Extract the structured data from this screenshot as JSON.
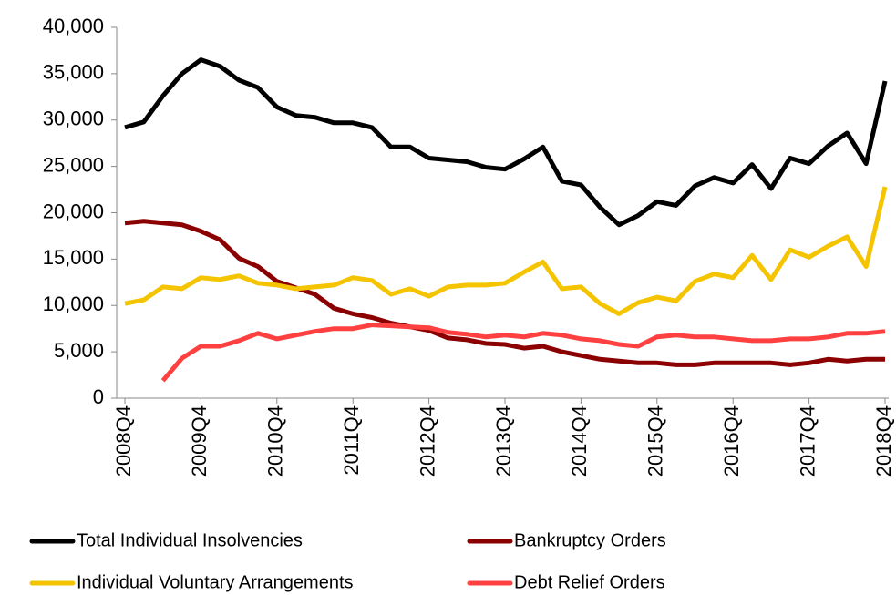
{
  "chart_data": {
    "type": "line",
    "categories": [
      "2008Q4",
      null,
      null,
      null,
      "2009Q4",
      null,
      null,
      null,
      "2010Q4",
      null,
      null,
      null,
      "2011Q4",
      null,
      null,
      null,
      "2012Q4",
      null,
      null,
      null,
      "2013Q4",
      null,
      null,
      null,
      "2014Q4",
      null,
      null,
      null,
      "2015Q4",
      null,
      null,
      null,
      "2016Q4",
      null,
      null,
      null,
      "2017Q4",
      null,
      null,
      null,
      "2018Q4"
    ],
    "series": [
      {
        "name": "Total Individual Insolvencies",
        "color": "#000000",
        "values": [
          29200,
          29800,
          32600,
          35000,
          36500,
          35800,
          34300,
          33500,
          31400,
          30500,
          30300,
          29700,
          29700,
          29200,
          27100,
          27100,
          25900,
          25700,
          25500,
          24900,
          24700,
          25800,
          27100,
          23400,
          23000,
          20600,
          18700,
          19700,
          21200,
          20800,
          22900,
          23800,
          23200,
          25200,
          22600,
          25900,
          25300,
          27200,
          28600,
          25300,
          34200
        ]
      },
      {
        "name": "Bankruptcy Orders",
        "color": "#8b0000",
        "values": [
          18900,
          19100,
          18900,
          18700,
          18000,
          17100,
          15100,
          14200,
          12600,
          11900,
          11200,
          9700,
          9100,
          8700,
          8100,
          7700,
          7300,
          6500,
          6300,
          5900,
          5800,
          5400,
          5600,
          5000,
          4600,
          4200,
          4000,
          3800,
          3800,
          3600,
          3600,
          3800,
          3800,
          3800,
          3800,
          3600,
          3800,
          4200,
          4000,
          4200,
          4200
        ]
      },
      {
        "name": "Individual Voluntary Arrangements",
        "color": "#f5c400",
        "values": [
          10200,
          10600,
          12000,
          11800,
          13000,
          12800,
          13200,
          12400,
          12200,
          11800,
          12000,
          12200,
          13000,
          12700,
          11200,
          11800,
          11000,
          12000,
          12200,
          12200,
          12400,
          13600,
          14700,
          11800,
          12000,
          10200,
          9100,
          10300,
          10900,
          10500,
          12600,
          13400,
          13000,
          15400,
          12800,
          16000,
          15200,
          16400,
          17400,
          14200,
          22800
        ]
      },
      {
        "name": "Debt Relief Orders",
        "color": "#ff4040",
        "values": [
          null,
          null,
          1900,
          4300,
          5600,
          5600,
          6200,
          7000,
          6400,
          6800,
          7200,
          7500,
          7500,
          7900,
          7800,
          7700,
          7600,
          7100,
          6900,
          6600,
          6800,
          6600,
          7000,
          6800,
          6400,
          6200,
          5800,
          5600,
          6600,
          6800,
          6600,
          6600,
          6400,
          6200,
          6200,
          6400,
          6400,
          6600,
          7000,
          7000,
          7200
        ]
      }
    ],
    "ylim": [
      0,
      40000
    ],
    "yticks": [
      0,
      {
        "value": 5000,
        "label": "5,000"
      },
      {
        "value": 10000,
        "label": "10,000"
      },
      {
        "value": 15000,
        "label": "15,000"
      },
      {
        "value": 20000,
        "label": "20,000"
      },
      {
        "value": 25000,
        "label": "25,000"
      },
      {
        "value": 30000,
        "label": "30,000"
      },
      {
        "value": 35000,
        "label": "35,000"
      },
      {
        "value": 40000,
        "label": "40,000"
      }
    ],
    "grid": false
  }
}
